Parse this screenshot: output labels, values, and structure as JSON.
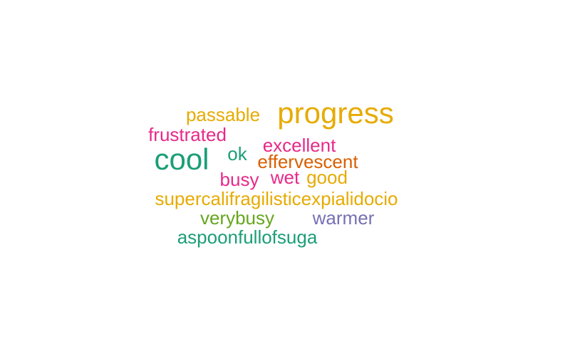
{
  "chart_data": {
    "type": "wordcloud",
    "words": [
      {
        "text": "progress",
        "weight": 10,
        "color": "#E6AB02"
      },
      {
        "text": "cool",
        "weight": 10,
        "color": "#1B9E77"
      },
      {
        "text": "passable",
        "weight": 6,
        "color": "#E6AB02"
      },
      {
        "text": "frustrated",
        "weight": 6,
        "color": "#E7298A"
      },
      {
        "text": "excellent",
        "weight": 6,
        "color": "#E7298A"
      },
      {
        "text": "ok",
        "weight": 6,
        "color": "#1B9E77"
      },
      {
        "text": "effervescent",
        "weight": 6,
        "color": "#D95F02"
      },
      {
        "text": "busy",
        "weight": 6,
        "color": "#E7298A"
      },
      {
        "text": "wet",
        "weight": 6,
        "color": "#E7298A"
      },
      {
        "text": "good",
        "weight": 6,
        "color": "#E6AB02"
      },
      {
        "text": "supercalifragilisticexpialidocio",
        "weight": 6,
        "color": "#E6AB02"
      },
      {
        "text": "verybusy",
        "weight": 6,
        "color": "#66A61E"
      },
      {
        "text": "warmer",
        "weight": 6,
        "color": "#7570B3"
      },
      {
        "text": "aspoonfullofsuga",
        "weight": 6,
        "color": "#1B9E77"
      }
    ]
  }
}
